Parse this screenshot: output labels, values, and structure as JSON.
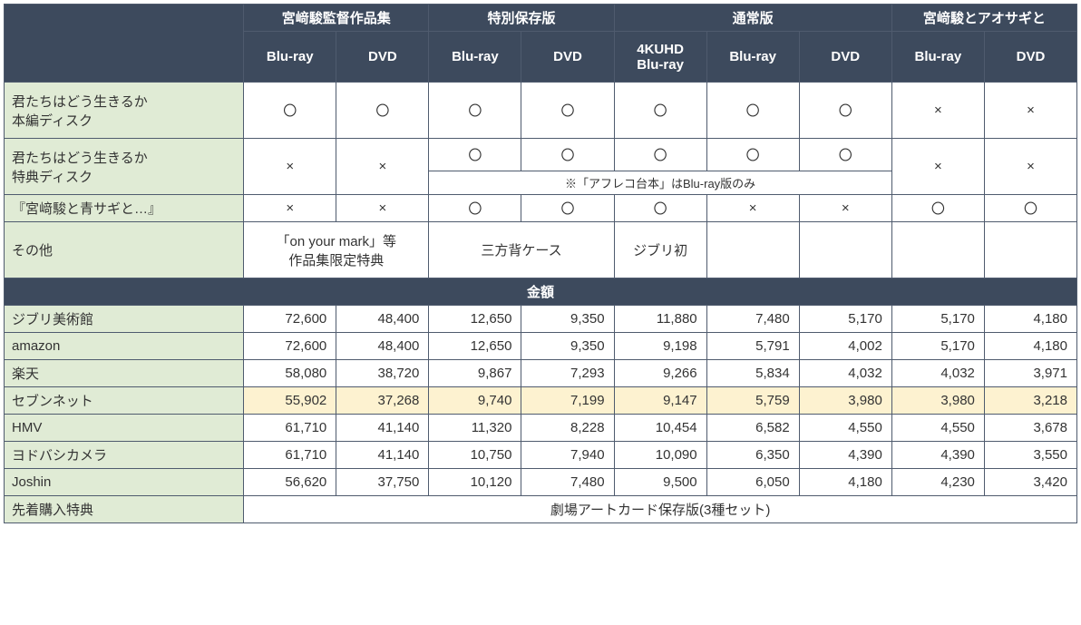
{
  "headers": {
    "blank": "",
    "groups": [
      "宮﨑駿監督作品集",
      "特別保存版",
      "通常版",
      "宮﨑駿とアオサギと"
    ],
    "sub": [
      "Blu-ray",
      "DVD",
      "Blu-ray",
      "DVD",
      "4KUHD\nBlu-ray",
      "Blu-ray",
      "DVD",
      "Blu-ray",
      "DVD"
    ]
  },
  "feature_rows": [
    {
      "label": "君たちはどう生きるか\n本編ディスク",
      "cells": [
        "〇",
        "〇",
        "〇",
        "〇",
        "〇",
        "〇",
        "〇",
        "×",
        "×"
      ]
    },
    {
      "label": "君たちはどう生きるか\n特典ディスク",
      "cells": [
        "×",
        "×",
        "〇",
        "〇",
        "〇",
        "〇",
        "〇",
        "×",
        "×"
      ]
    },
    {
      "label": "『宮﨑駿と青サギと…』",
      "cells": [
        "×",
        "×",
        "〇",
        "〇",
        "〇",
        "×",
        "×",
        "〇",
        "〇"
      ]
    }
  ],
  "note": "※「アフレコ台本」はBlu-ray版のみ",
  "other": {
    "label": "その他",
    "c1": "「on your mark」等\n作品集限定特典",
    "c2": "三方背ケース",
    "c3": "ジブリ初",
    "c4": "",
    "c5": "",
    "c6": "",
    "c7": ""
  },
  "price_header": "金額",
  "price_rows": [
    {
      "label": "ジブリ美術館",
      "vals": [
        "72,600",
        "48,400",
        "12,650",
        "9,350",
        "11,880",
        "7,480",
        "5,170",
        "5,170",
        "4,180"
      ],
      "hl": false
    },
    {
      "label": "amazon",
      "vals": [
        "72,600",
        "48,400",
        "12,650",
        "9,350",
        "9,198",
        "5,791",
        "4,002",
        "5,170",
        "4,180"
      ],
      "hl": false
    },
    {
      "label": "楽天",
      "vals": [
        "58,080",
        "38,720",
        "9,867",
        "7,293",
        "9,266",
        "5,834",
        "4,032",
        "4,032",
        "3,971"
      ],
      "hl": false
    },
    {
      "label": "セブンネット",
      "vals": [
        "55,902",
        "37,268",
        "9,740",
        "7,199",
        "9,147",
        "5,759",
        "3,980",
        "3,980",
        "3,218"
      ],
      "hl": true
    },
    {
      "label": "HMV",
      "vals": [
        "61,710",
        "41,140",
        "11,320",
        "8,228",
        "10,454",
        "6,582",
        "4,550",
        "4,550",
        "3,678"
      ],
      "hl": false
    },
    {
      "label": "ヨドバシカメラ",
      "vals": [
        "61,710",
        "41,140",
        "10,750",
        "7,940",
        "10,090",
        "6,350",
        "4,390",
        "4,390",
        "3,550"
      ],
      "hl": false
    },
    {
      "label": "Joshin",
      "vals": [
        "56,620",
        "37,750",
        "10,120",
        "7,480",
        "9,500",
        "6,050",
        "4,180",
        "4,230",
        "3,420"
      ],
      "hl": false
    }
  ],
  "bonus": {
    "label": "先着購入特典",
    "text": "劇場アートカード保存版(3種セット)"
  },
  "style": {
    "header_bg": "#3d4a5d",
    "header_fg": "#ffffff",
    "row_label_bg": "#e0ebd5",
    "highlight_bg": "#fdf2d0",
    "border": "#4f5b6e",
    "font_size": 15
  }
}
